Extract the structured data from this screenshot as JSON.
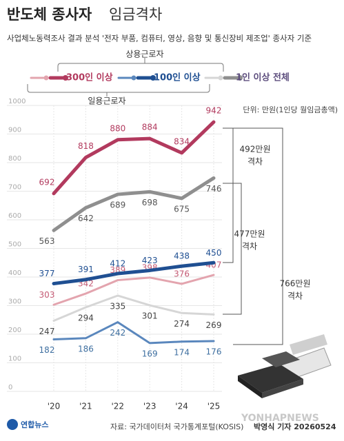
{
  "chart_data": {
    "type": "line",
    "title": "반도체 종사자",
    "title_suffix": "임금격차",
    "subtitle": "사업체노동력조사 결과 분석 '전자 부품, 컴퓨터, 영상, 음향 및 통신장비 제조업' 종사자 기준",
    "unit_note": "단위: 만원(1인당 월임금총액)",
    "worker_types": [
      "상용근로자",
      "일용근로자"
    ],
    "categories": [
      "'20",
      "'21",
      "'22",
      "'23",
      "'24",
      "'25"
    ],
    "series": [
      {
        "name": "300인 이상",
        "color": "#b23a5e",
        "values": [
          692,
          818,
          880,
          884,
          834,
          942
        ],
        "daily_color": "#e3a4ae",
        "daily_values": [
          303,
          342,
          389,
          398,
          376,
          407
        ]
      },
      {
        "name": "100인 이상",
        "color": "#1f4f92",
        "values": [
          377,
          391,
          412,
          423,
          438,
          450
        ],
        "daily_color": "#5a87bd",
        "daily_values": [
          182,
          186,
          242,
          169,
          174,
          176
        ]
      },
      {
        "name": "1인 이상 전체",
        "color": "#8f8f8f",
        "values": [
          563,
          642,
          689,
          698,
          675,
          746
        ],
        "daily_color": "#d6d6d6",
        "daily_values": [
          247,
          294,
          335,
          301,
          274,
          269
        ]
      }
    ],
    "ylim": [
      0,
      1000
    ],
    "yticks": [
      0,
      100,
      200,
      300,
      400,
      500,
      600,
      700,
      800,
      900,
      1000
    ],
    "grid": true,
    "annotations": [
      [
        "492만원",
        "격차"
      ],
      [
        "477만원",
        "격차"
      ],
      [
        "766만원",
        "격차"
      ]
    ],
    "source": "자료: 국가데이터처 국가통계포털(KOSIS)",
    "credit": "박영식 기자 20260524",
    "logo": "연합뉴스",
    "watermark": "YONHAPNEWS"
  }
}
